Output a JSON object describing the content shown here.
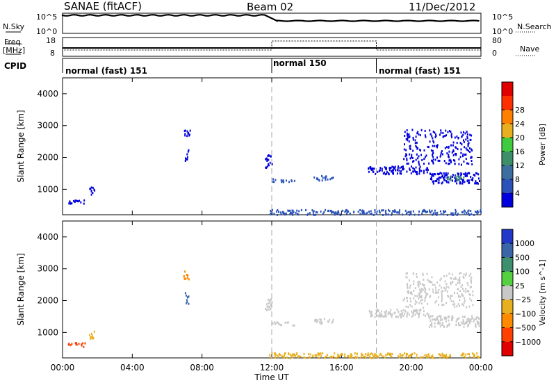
{
  "header": {
    "site": "SANAE (fitACF)",
    "beam": "Beam 02",
    "date": "11/Dec/2012"
  },
  "top_panel": {
    "left_label": "N.Sky",
    "left_ticks": [
      "10^5",
      "10^0"
    ],
    "right_ticks": [
      "10^5",
      "10^0"
    ],
    "right_label": "N.Search"
  },
  "freq_panel": {
    "left_label_line1": "Freq.",
    "left_label_line2": "[MHz]",
    "left_ticks": [
      "18",
      "8"
    ],
    "right_ticks": [
      "80",
      "0"
    ],
    "right_label": "Nave"
  },
  "cpid_panel": {
    "label": "CPID",
    "segments": [
      {
        "name": "normal (fast) 151",
        "start_hr": 0,
        "end_hr": 12
      },
      {
        "name": "normal 150",
        "start_hr": 12,
        "end_hr": 18
      },
      {
        "name": "normal (fast) 151",
        "start_hr": 18,
        "end_hr": 24
      }
    ]
  },
  "chart_data": [
    {
      "type": "heatmap",
      "title": "",
      "ylabel": "Slant Range [km]",
      "yticks": [
        "1000",
        "2000",
        "3000",
        "4000"
      ],
      "ylim": [
        200,
        4500
      ],
      "xlim": [
        0,
        24
      ],
      "colorbar": {
        "label": "Power [dB]",
        "ticks": [
          "4",
          "8",
          "12",
          "16",
          "20",
          "24",
          "28"
        ],
        "colors": [
          "#0000dd",
          "#2a52b8",
          "#3c6fa0",
          "#3d8f6a",
          "#3fcb3f",
          "#e8b020",
          "#ff8000",
          "#ff3000",
          "#e00000"
        ]
      },
      "clusters": [
        {
          "x_hr": [
            0.3,
            1.3
          ],
          "range_km": [
            570,
            700
          ],
          "color_index": 0
        },
        {
          "x_hr": [
            1.5,
            1.8
          ],
          "range_km": [
            800,
            1100
          ],
          "color_index": 0
        },
        {
          "x_hr": [
            6.9,
            7.3
          ],
          "range_km": [
            2700,
            2950
          ],
          "color_index": 0
        },
        {
          "x_hr": [
            7.0,
            7.2
          ],
          "range_km": [
            1900,
            2300
          ],
          "color_index": 0
        },
        {
          "x_hr": [
            11.6,
            12.0
          ],
          "range_km": [
            1700,
            2100
          ],
          "color_index": 0
        },
        {
          "x_hr": [
            12.0,
            13.3
          ],
          "range_km": [
            1250,
            1350
          ],
          "color_index": 1
        },
        {
          "x_hr": [
            14.4,
            15.5
          ],
          "range_km": [
            1300,
            1450
          ],
          "color_index": 1
        },
        {
          "x_hr": [
            17.5,
            21.0
          ],
          "range_km": [
            1500,
            1750
          ],
          "color_index": 0
        },
        {
          "x_hr": [
            21.0,
            23.9
          ],
          "range_km": [
            1200,
            1550
          ],
          "color_index": 0
        },
        {
          "x_hr": [
            22.0,
            23.0
          ],
          "range_km": [
            1300,
            1450
          ],
          "color_index": 3
        },
        {
          "x_hr": [
            19.5,
            23.5
          ],
          "range_km": [
            1800,
            2900
          ],
          "color_index": 0
        },
        {
          "x_hr": [
            11.8,
            24.0
          ],
          "range_km": [
            220,
            380
          ],
          "color_index": 1
        }
      ]
    },
    {
      "type": "heatmap",
      "title": "",
      "ylabel": "Slant Range [km]",
      "yticks": [
        "1000",
        "2000",
        "3000",
        "4000"
      ],
      "ylim": [
        200,
        4500
      ],
      "xlim": [
        0,
        24
      ],
      "xticks": [
        "00:00",
        "04:00",
        "08:00",
        "12:00",
        "16:00",
        "20:00",
        "00:00"
      ],
      "xlabel": "Time UT",
      "colorbar": {
        "label": "Velocity [m s^-1]",
        "ticks": [
          "1000",
          "500",
          "100",
          "25",
          "−25",
          "−100",
          "−500",
          "−1000"
        ],
        "colors": [
          "#2238c8",
          "#3a66a8",
          "#3e8f6e",
          "#55d040",
          "#c8c8c8",
          "#e8b020",
          "#ff8a00",
          "#ff4000",
          "#e00000"
        ]
      },
      "clusters": [
        {
          "x_hr": [
            0.3,
            1.3
          ],
          "range_km": [
            570,
            700
          ],
          "color_index": 7
        },
        {
          "x_hr": [
            1.5,
            1.8
          ],
          "range_km": [
            800,
            1100
          ],
          "color_index": 5
        },
        {
          "x_hr": [
            6.9,
            7.3
          ],
          "range_km": [
            2700,
            2950
          ],
          "color_index": 6
        },
        {
          "x_hr": [
            7.0,
            7.2
          ],
          "range_km": [
            1900,
            2300
          ],
          "color_index": 1
        },
        {
          "x_hr": [
            11.6,
            12.0
          ],
          "range_km": [
            1700,
            2100
          ],
          "color_index": 4
        },
        {
          "x_hr": [
            12.0,
            13.3
          ],
          "range_km": [
            1250,
            1350
          ],
          "color_index": 4
        },
        {
          "x_hr": [
            14.4,
            15.5
          ],
          "range_km": [
            1300,
            1450
          ],
          "color_index": 4
        },
        {
          "x_hr": [
            17.5,
            21.0
          ],
          "range_km": [
            1500,
            1750
          ],
          "color_index": 4
        },
        {
          "x_hr": [
            21.0,
            23.9
          ],
          "range_km": [
            1200,
            1550
          ],
          "color_index": 4
        },
        {
          "x_hr": [
            19.5,
            23.5
          ],
          "range_km": [
            1800,
            2900
          ],
          "color_index": 4
        },
        {
          "x_hr": [
            11.8,
            24.0
          ],
          "range_km": [
            220,
            380
          ],
          "color_index": 5
        }
      ]
    }
  ]
}
